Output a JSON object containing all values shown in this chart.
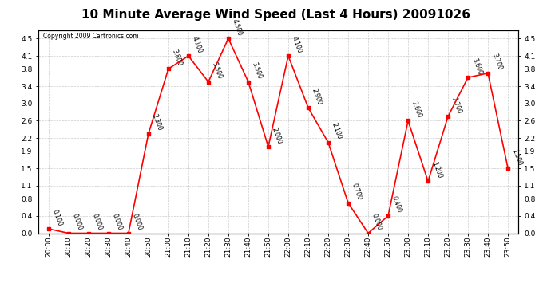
{
  "title": "10 Minute Average Wind Speed (Last 4 Hours) 20091026",
  "copyright": "Copyright 2009 Cartronics.com",
  "x_labels": [
    "20:00",
    "20:10",
    "20:20",
    "20:30",
    "20:40",
    "20:50",
    "21:00",
    "21:10",
    "21:20",
    "21:30",
    "21:40",
    "21:50",
    "22:00",
    "22:10",
    "22:20",
    "22:30",
    "22:40",
    "22:50",
    "23:00",
    "23:10",
    "23:20",
    "23:30",
    "23:40",
    "23:50"
  ],
  "y_values": [
    0.1,
    0.0,
    0.0,
    0.0,
    0.0,
    2.3,
    3.8,
    4.1,
    3.5,
    4.5,
    3.5,
    2.0,
    4.1,
    2.9,
    2.1,
    0.7,
    0.0,
    0.4,
    2.6,
    1.2,
    2.7,
    3.6,
    3.7,
    1.5
  ],
  "point_labels": [
    "0.100",
    "0.000",
    "0.000",
    "0.000",
    "0.000",
    "2.300",
    "3.800",
    "4.100",
    "3.500",
    "4.500",
    "3.500",
    "2.000",
    "4.100",
    "2.900",
    "2.100",
    "0.700",
    "0.000",
    "0.400",
    "2.600",
    "1.200",
    "2.700",
    "3.600",
    "3.700",
    "1.500"
  ],
  "line_color": "#ff0000",
  "marker_color": "#ff0000",
  "background_color": "#ffffff",
  "grid_color": "#cccccc",
  "title_fontsize": 11,
  "ylim": [
    0.0,
    4.7
  ],
  "yticks": [
    0.0,
    0.4,
    0.8,
    1.1,
    1.5,
    1.9,
    2.2,
    2.6,
    3.0,
    3.4,
    3.8,
    4.1,
    4.5
  ]
}
